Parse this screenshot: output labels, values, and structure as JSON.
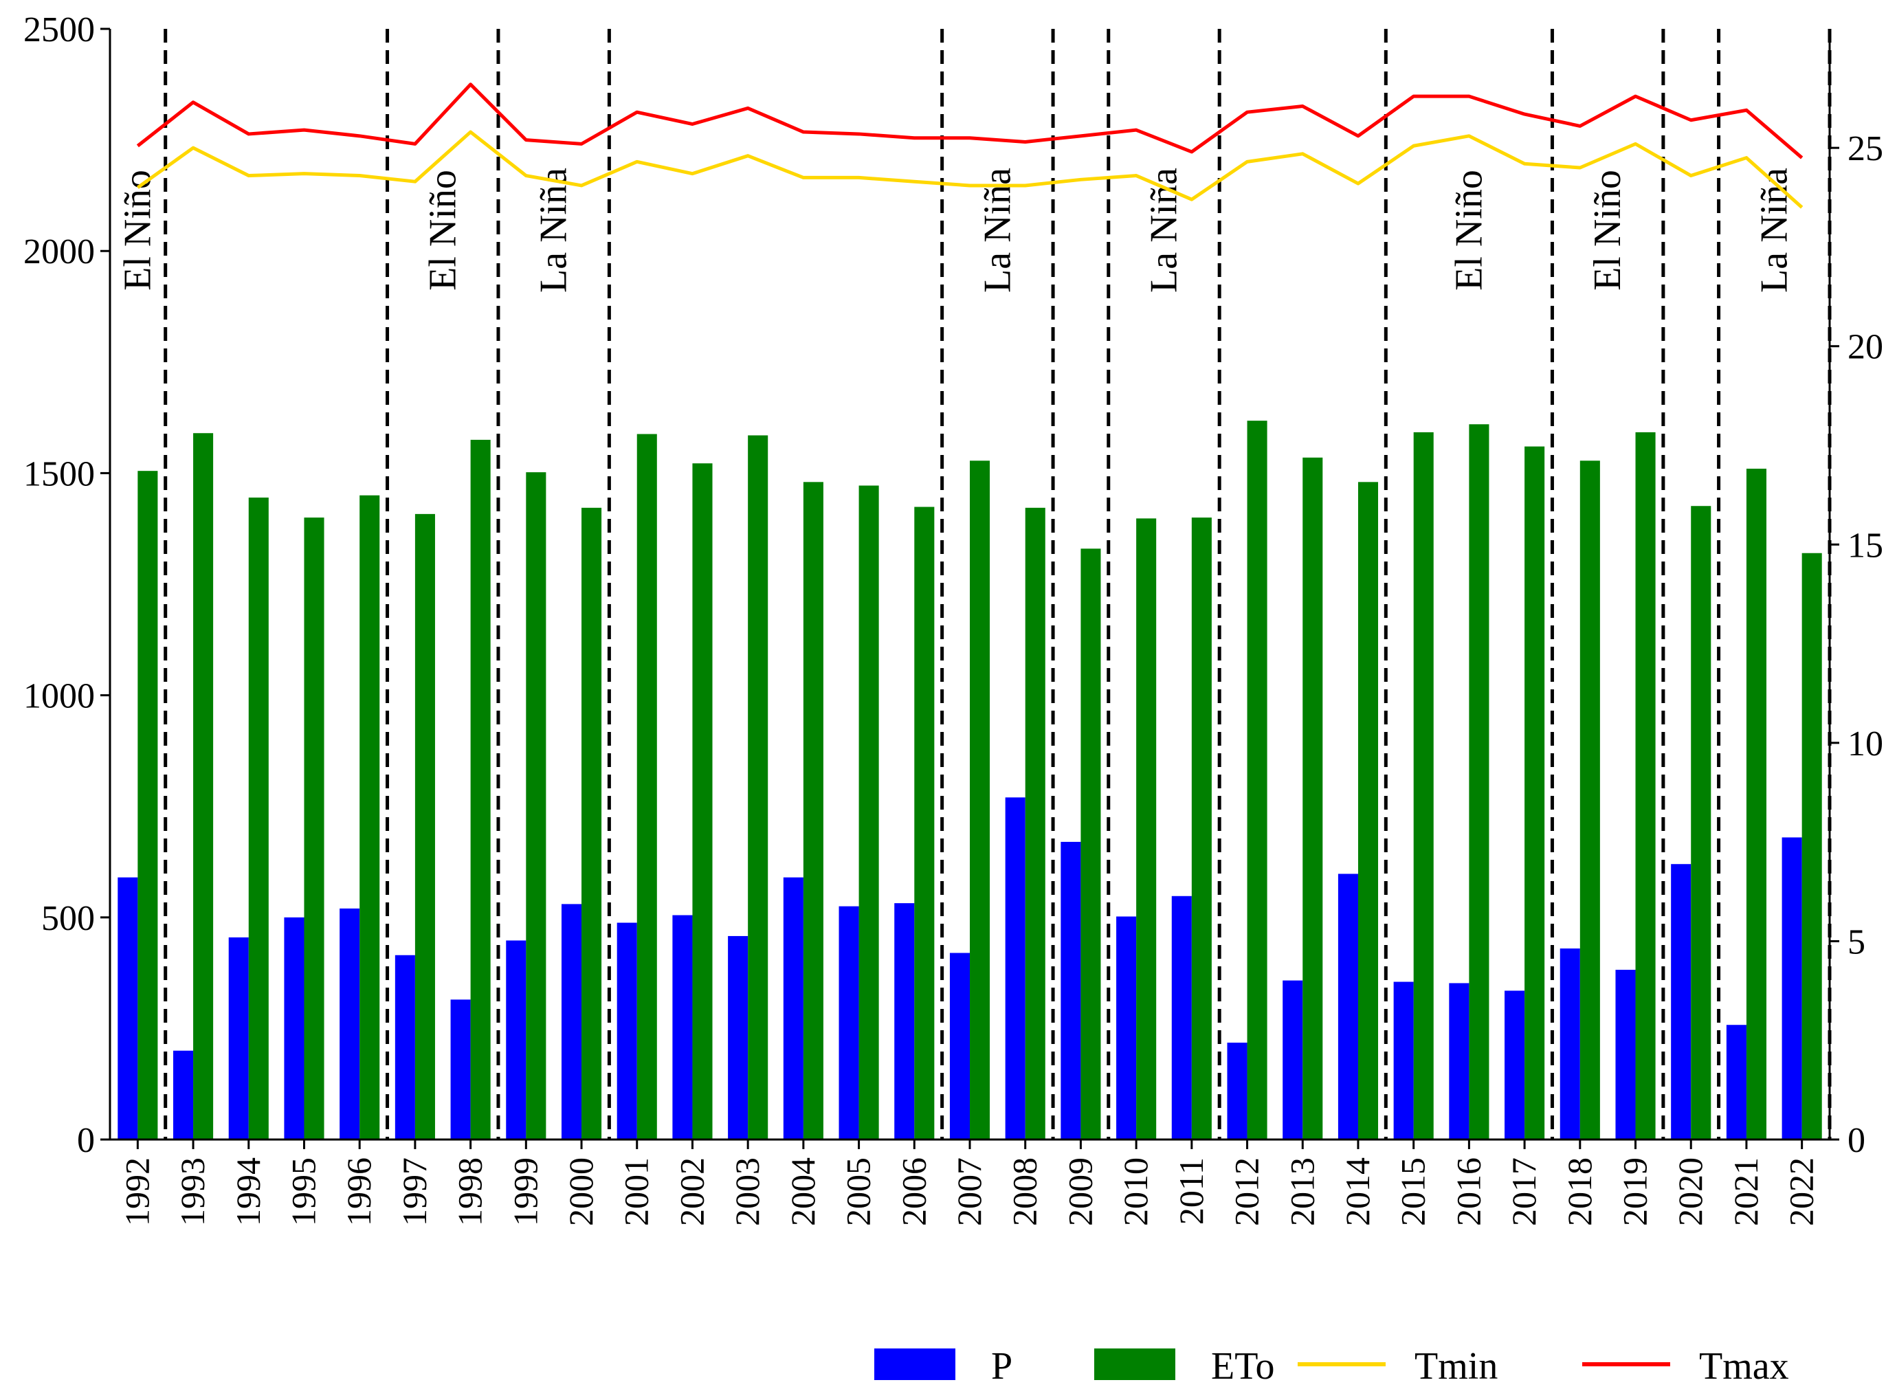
{
  "chart_data": {
    "type": "bar",
    "title": "",
    "xlabel": "",
    "ylabel": "",
    "y2label": "",
    "categories": [
      "1992",
      "1993",
      "1994",
      "1995",
      "1996",
      "1997",
      "1998",
      "1999",
      "2000",
      "2001",
      "2002",
      "2003",
      "2004",
      "2005",
      "2006",
      "2007",
      "2008",
      "2009",
      "2010",
      "2011",
      "2012",
      "2013",
      "2014",
      "2015",
      "2016",
      "2017",
      "2018",
      "2019",
      "2020",
      "2021",
      "2022"
    ],
    "ylim": [
      0,
      2500
    ],
    "y_ticks": [
      0,
      500,
      1000,
      1500,
      2000,
      2500
    ],
    "y2lim": [
      0,
      28
    ],
    "y2_ticks": [
      0,
      5,
      10,
      15,
      20,
      25
    ],
    "series": [
      {
        "name": "P",
        "kind": "bar",
        "axis": "left",
        "color": "#0000ff",
        "values": [
          590,
          200,
          455,
          500,
          520,
          415,
          315,
          448,
          530,
          488,
          505,
          458,
          590,
          525,
          532,
          420,
          770,
          670,
          502,
          548,
          218,
          358,
          598,
          355,
          352,
          335,
          430,
          382,
          620,
          258,
          680
        ]
      },
      {
        "name": "ETo",
        "kind": "bar",
        "axis": "left",
        "color": "#008000",
        "values": [
          1505,
          1590,
          1445,
          1400,
          1450,
          1408,
          1575,
          1502,
          1422,
          1588,
          1522,
          1585,
          1480,
          1472,
          1424,
          1528,
          1422,
          1330,
          1398,
          1400,
          1618,
          1535,
          1480,
          1592,
          1610,
          1560,
          1528,
          1592,
          1426,
          1510,
          1320
        ]
      },
      {
        "name": "Tmin",
        "kind": "line",
        "axis": "right",
        "color": "#ffd700",
        "values": [
          24.0,
          25.0,
          24.3,
          24.35,
          24.3,
          24.15,
          25.4,
          24.3,
          24.05,
          24.65,
          24.35,
          24.8,
          24.25,
          24.25,
          24.15,
          24.05,
          24.05,
          24.2,
          24.3,
          23.7,
          24.65,
          24.85,
          24.1,
          25.05,
          25.3,
          24.6,
          24.5,
          25.1,
          24.3,
          24.75,
          23.5
        ]
      },
      {
        "name": "Tmax",
        "kind": "line",
        "axis": "right",
        "color": "#ff0000",
        "values": [
          25.05,
          26.15,
          25.35,
          25.45,
          25.3,
          25.1,
          26.6,
          25.2,
          25.1,
          25.9,
          25.6,
          26.0,
          25.4,
          25.35,
          25.25,
          25.25,
          25.15,
          25.3,
          25.45,
          24.9,
          25.9,
          26.05,
          25.3,
          26.3,
          26.3,
          25.85,
          25.55,
          26.3,
          25.7,
          25.95,
          24.75
        ]
      }
    ],
    "enso_dividers_after": [
      "1992",
      "1996",
      "1998",
      "2000",
      "2006",
      "2008",
      "2009",
      "2011",
      "2014",
      "2017",
      "2019",
      "2020",
      "2022"
    ],
    "enso_labels": [
      {
        "text": "El Niño",
        "from": "1992",
        "to": "1992"
      },
      {
        "text": "El Niño",
        "from": "1997",
        "to": "1998"
      },
      {
        "text": "La Niña",
        "from": "1999",
        "to": "2000"
      },
      {
        "text": "La Niña",
        "from": "2007",
        "to": "2008"
      },
      {
        "text": "La Niña",
        "from": "2010",
        "to": "2011"
      },
      {
        "text": "El Niño",
        "from": "2015",
        "to": "2017"
      },
      {
        "text": "El Niño",
        "from": "2018",
        "to": "2019"
      },
      {
        "text": "La Niña",
        "from": "2021",
        "to": "2022"
      }
    ],
    "legend": {
      "position": "bottom",
      "entries": [
        {
          "label": "P",
          "symbol": "bar",
          "color": "#0000ff"
        },
        {
          "label": "ETo",
          "symbol": "bar",
          "color": "#008000"
        },
        {
          "label": "Tmin",
          "symbol": "line",
          "color": "#ffd700"
        },
        {
          "label": "Tmax",
          "symbol": "line",
          "color": "#ff0000"
        }
      ]
    },
    "grid": false
  }
}
